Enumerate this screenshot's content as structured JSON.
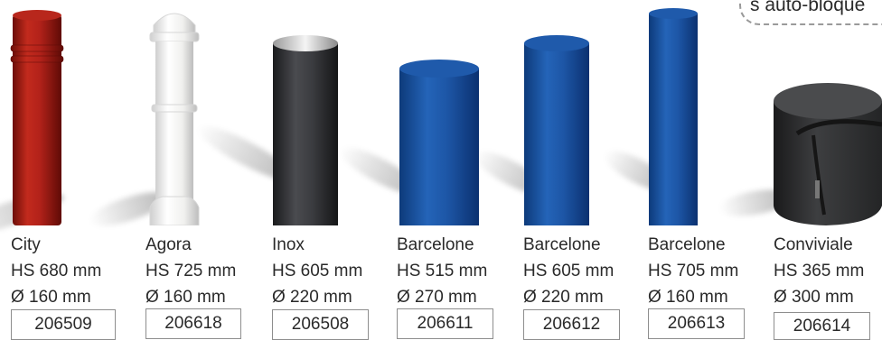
{
  "callout": {
    "text": "s auto-bloque"
  },
  "products": [
    {
      "name": "City",
      "height": "HS 680 mm",
      "diameter": "Ø 160 mm",
      "reference": "206509",
      "color": "#b01e14"
    },
    {
      "name": "Agora",
      "height": "HS 725 mm",
      "diameter": "Ø 160 mm",
      "reference": "206618",
      "color": "#f2f2f0"
    },
    {
      "name": "Inox",
      "height": "HS 605 mm",
      "diameter": "Ø 220 mm",
      "reference": "206508",
      "color": "#3a3b3e"
    },
    {
      "name": "Barcelone",
      "height": "HS 515 mm",
      "diameter": "Ø 270 mm",
      "reference": "206611",
      "color": "#1d56a6"
    },
    {
      "name": "Barcelone",
      "height": "HS 605 mm",
      "diameter": "Ø 220 mm",
      "reference": "206612",
      "color": "#1d56a6"
    },
    {
      "name": "Barcelone",
      "height": "HS 705 mm",
      "diameter": "Ø 160 mm",
      "reference": "206613",
      "color": "#1d56a6"
    },
    {
      "name": "Conviviale",
      "height": "HS 365 mm",
      "diameter": "Ø 300 mm",
      "reference": "206614",
      "color": "#2e2f31"
    }
  ]
}
